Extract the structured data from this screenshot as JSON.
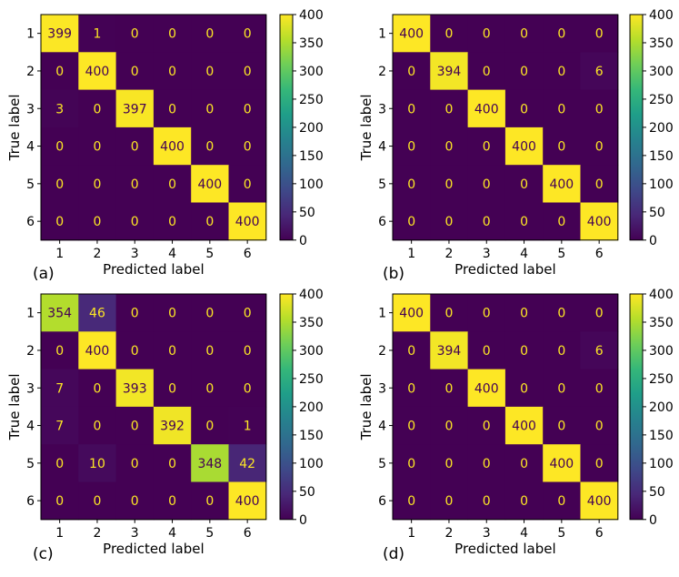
{
  "chart_data": [
    {
      "type": "heatmap",
      "panel_label": "(a)",
      "xlabel": "Predicted label",
      "ylabel": "True label",
      "x_tick_labels": [
        "1",
        "2",
        "3",
        "4",
        "5",
        "6"
      ],
      "y_tick_labels": [
        "1",
        "2",
        "3",
        "4",
        "5",
        "6"
      ],
      "matrix": [
        [
          399,
          1,
          0,
          0,
          0,
          0
        ],
        [
          0,
          400,
          0,
          0,
          0,
          0
        ],
        [
          3,
          0,
          397,
          0,
          0,
          0
        ],
        [
          0,
          0,
          0,
          400,
          0,
          0
        ],
        [
          0,
          0,
          0,
          0,
          400,
          0
        ],
        [
          0,
          0,
          0,
          0,
          0,
          400
        ]
      ],
      "colorbar": {
        "vmin": 0,
        "vmax": 400,
        "ticks": [
          "0",
          "50",
          "100",
          "150",
          "200",
          "250",
          "300",
          "350",
          "400"
        ]
      }
    },
    {
      "type": "heatmap",
      "panel_label": "(b)",
      "xlabel": "Predicted label",
      "ylabel": "True label",
      "x_tick_labels": [
        "1",
        "2",
        "3",
        "4",
        "5",
        "6"
      ],
      "y_tick_labels": [
        "1",
        "2",
        "3",
        "4",
        "5",
        "6"
      ],
      "matrix": [
        [
          400,
          0,
          0,
          0,
          0,
          0
        ],
        [
          0,
          394,
          0,
          0,
          0,
          6
        ],
        [
          0,
          0,
          400,
          0,
          0,
          0
        ],
        [
          0,
          0,
          0,
          400,
          0,
          0
        ],
        [
          0,
          0,
          0,
          0,
          400,
          0
        ],
        [
          0,
          0,
          0,
          0,
          0,
          400
        ]
      ],
      "colorbar": {
        "vmin": 0,
        "vmax": 400,
        "ticks": [
          "0",
          "50",
          "100",
          "150",
          "200",
          "250",
          "300",
          "350",
          "400"
        ]
      }
    },
    {
      "type": "heatmap",
      "panel_label": "(c)",
      "xlabel": "Predicted label",
      "ylabel": "True label",
      "x_tick_labels": [
        "1",
        "2",
        "3",
        "4",
        "5",
        "6"
      ],
      "y_tick_labels": [
        "1",
        "2",
        "3",
        "4",
        "5",
        "6"
      ],
      "matrix": [
        [
          354,
          46,
          0,
          0,
          0,
          0
        ],
        [
          0,
          400,
          0,
          0,
          0,
          0
        ],
        [
          7,
          0,
          393,
          0,
          0,
          0
        ],
        [
          7,
          0,
          0,
          392,
          0,
          1
        ],
        [
          0,
          10,
          0,
          0,
          348,
          42
        ],
        [
          0,
          0,
          0,
          0,
          0,
          400
        ]
      ],
      "colorbar": {
        "vmin": 0,
        "vmax": 400,
        "ticks": [
          "0",
          "50",
          "100",
          "150",
          "200",
          "250",
          "300",
          "350",
          "400"
        ]
      }
    },
    {
      "type": "heatmap",
      "panel_label": "(d)",
      "xlabel": "Predicted label",
      "ylabel": "True label",
      "x_tick_labels": [
        "1",
        "2",
        "3",
        "4",
        "5",
        "6"
      ],
      "y_tick_labels": [
        "1",
        "2",
        "3",
        "4",
        "5",
        "6"
      ],
      "matrix": [
        [
          400,
          0,
          0,
          0,
          0,
          0
        ],
        [
          0,
          394,
          0,
          0,
          0,
          6
        ],
        [
          0,
          0,
          400,
          0,
          0,
          0
        ],
        [
          0,
          0,
          0,
          400,
          0,
          0
        ],
        [
          0,
          0,
          0,
          0,
          400,
          0
        ],
        [
          0,
          0,
          0,
          0,
          0,
          400
        ]
      ],
      "colorbar": {
        "vmin": 0,
        "vmax": 400,
        "ticks": [
          "0",
          "50",
          "100",
          "150",
          "200",
          "250",
          "300",
          "350",
          "400"
        ]
      }
    }
  ],
  "colors": {
    "background": "#ffffff",
    "axis": "#000000",
    "text_on_dark": "#fde725",
    "text_on_light": "#440154"
  }
}
